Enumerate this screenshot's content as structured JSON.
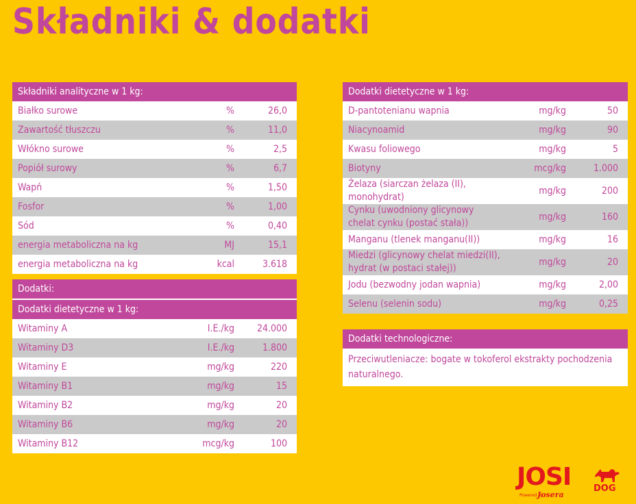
{
  "title": "Składniki & dodatki",
  "analytical": {
    "header": "Składniki analityczne w 1 kg:",
    "rows": [
      {
        "name": "Białko surowe",
        "unit": "%",
        "value": "26,0"
      },
      {
        "name": "Zawartość tłuszczu",
        "unit": "%",
        "value": "11,0"
      },
      {
        "name": "Włókno surowe",
        "unit": "%",
        "value": "2,5"
      },
      {
        "name": "Popiół surowy",
        "unit": "%",
        "value": "6,7"
      },
      {
        "name": "Wapń",
        "unit": "%",
        "value": "1,50"
      },
      {
        "name": "Fosfor",
        "unit": "%",
        "value": "1,00"
      },
      {
        "name": "Sód",
        "unit": "%",
        "value": "0,40"
      },
      {
        "name": "energia metaboliczna na kg",
        "unit": "MJ",
        "value": "15,1"
      },
      {
        "name": "energia metaboliczna na kg",
        "unit": "kcal",
        "value": "3.618"
      }
    ]
  },
  "additives": {
    "header": "Dodatki:",
    "sub_header": "Dodatki dietetyczne w 1 kg:",
    "rows": [
      {
        "name": "Witaminy A",
        "unit": "I.E./kg",
        "value": "24.000"
      },
      {
        "name": "Witaminy D3",
        "unit": "I.E./kg",
        "value": "1.800"
      },
      {
        "name": "Witaminy E",
        "unit": "mg/kg",
        "value": "220"
      },
      {
        "name": "Witaminy B1",
        "unit": "mg/kg",
        "value": "15"
      },
      {
        "name": "Witaminy B2",
        "unit": "mg/kg",
        "value": "20"
      },
      {
        "name": "Witaminy B6",
        "unit": "mg/kg",
        "value": "20"
      },
      {
        "name": "Witaminy B12",
        "unit": "mcg/kg",
        "value": "100"
      }
    ]
  },
  "dietetic": {
    "header": "Dodatki dietetyczne w 1 kg:",
    "rows": [
      {
        "name": "D-pantotenianu wapnia",
        "unit": "mg/kg",
        "value": "50"
      },
      {
        "name": "Niacynoamid",
        "unit": "mg/kg",
        "value": "90"
      },
      {
        "name": "Kwasu foliowego",
        "unit": "mg/kg",
        "value": "5"
      },
      {
        "name": "Biotyny",
        "unit": "mcg/kg",
        "value": "1.000"
      },
      {
        "name": "Żelaza (siarczan żelaza (II), monohydrat)",
        "unit": "mg/kg",
        "value": "200"
      },
      {
        "name": "Cynku (uwodniony glicynowy chelat cynku (postać stała))",
        "unit": "mg/kg",
        "value": "160"
      },
      {
        "name": "Manganu (tlenek manganu(II))",
        "unit": "mg/kg",
        "value": "16"
      },
      {
        "name": "Miedzi (glicynowy chelat miedzi(II), hydrat (w postaci stałej))",
        "unit": "mg/kg",
        "value": "20"
      },
      {
        "name": "Jodu (bezwodny jodan wapnia)",
        "unit": "mg/kg",
        "value": "2,00"
      },
      {
        "name": "Selenu (selenin sodu)",
        "unit": "mg/kg",
        "value": "0,25"
      }
    ]
  },
  "technological": {
    "header": "Dodatki technologiczne:",
    "text": "Przeciwutleniacze: bogate w tokoferol ekstrakty pochodzenia naturalnego."
  },
  "logo": {
    "brand": "JOSI",
    "sub": "DOG",
    "powered_by": "Powered by",
    "maker": "Josera",
    "icon": "dog-icon"
  },
  "colors": {
    "background": "#fdc800",
    "accent": "#c0479b",
    "row_alt": "#cacaca",
    "logo": "#e3181d"
  }
}
